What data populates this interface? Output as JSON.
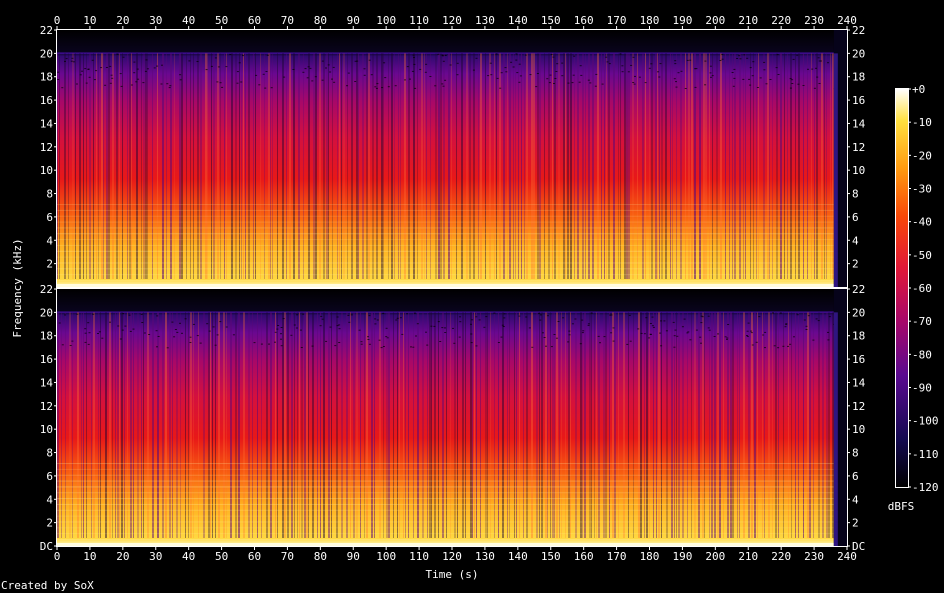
{
  "chart_data": {
    "type": "heatmap",
    "xlabel": "Time (s)",
    "ylabel": "Frequency (kHz)",
    "x_ticks": [
      "0",
      "10",
      "20",
      "30",
      "40",
      "50",
      "60",
      "70",
      "80",
      "90",
      "100",
      "110",
      "120",
      "130",
      "140",
      "150",
      "160",
      "170",
      "180",
      "190",
      "200",
      "210",
      "220",
      "230",
      "240"
    ],
    "xlim": [
      0,
      240
    ],
    "channels": [
      {
        "y_ticks": [
          "22",
          "20",
          "18",
          "16",
          "14",
          "12",
          "10",
          "8",
          "6",
          "4",
          "2"
        ],
        "ylim": [
          0,
          22
        ]
      },
      {
        "y_ticks": [
          "22",
          "20",
          "18",
          "16",
          "14",
          "12",
          "10",
          "8",
          "6",
          "4",
          "2",
          "DC"
        ],
        "ylim": [
          0,
          22
        ]
      }
    ],
    "colorbar": {
      "unit": "dBFS",
      "ticks": [
        "+0",
        "-10",
        "-20",
        "-30",
        "-40",
        "-50",
        "-60",
        "-70",
        "-80",
        "-90",
        "-100",
        "-110",
        "-120"
      ],
      "range": [
        -120,
        0
      ]
    },
    "lowpass_cutoff_khz": 20,
    "signal_end_s": 236
  },
  "footer": "Created by SoX",
  "colors": {
    "background": "#000000",
    "text": "#ffffff"
  }
}
